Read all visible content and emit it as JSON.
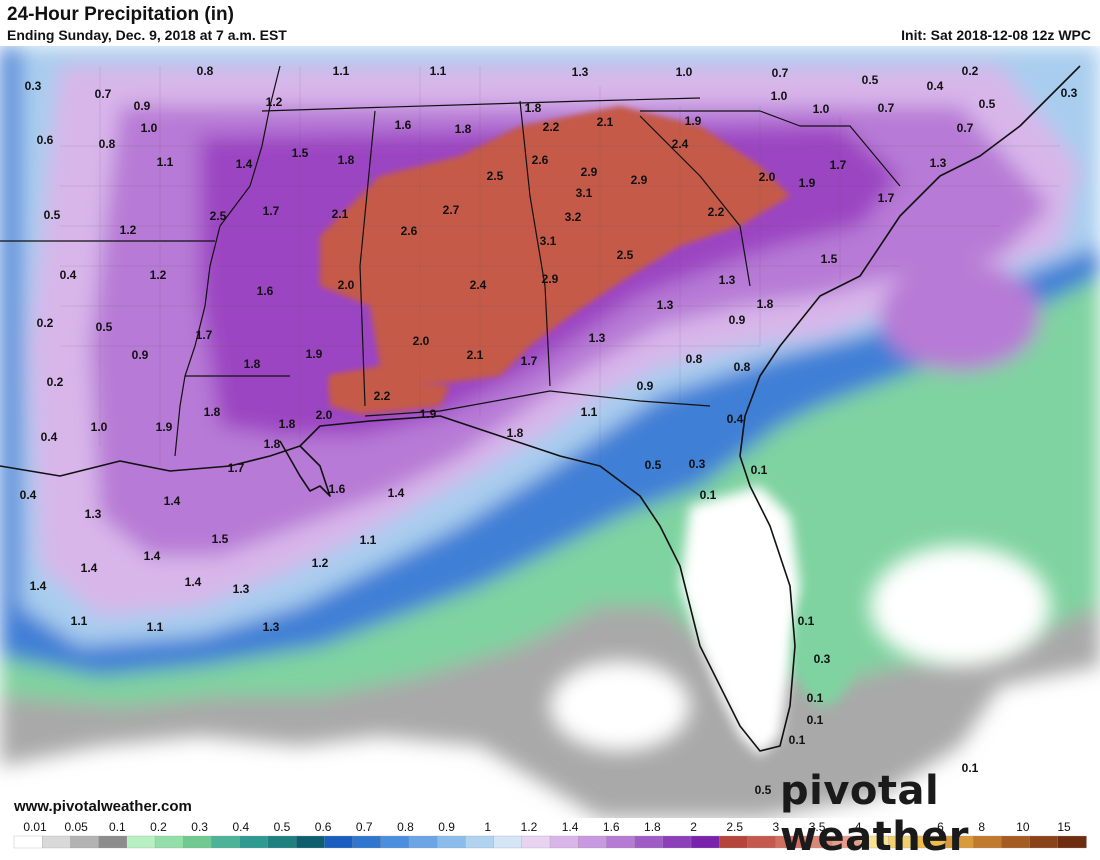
{
  "title": "24-Hour Precipitation (in)",
  "subtitle": "Ending Sunday, Dec. 9, 2018 at 7 a.m. EST",
  "init": "Init: Sat 2018-12-08 12z WPC",
  "website": "www.pivotalweather.com",
  "brand": "pivotal weather",
  "legend": {
    "ticks": [
      "0.01",
      "0.05",
      "0.1",
      "0.2",
      "0.3",
      "0.4",
      "0.5",
      "0.6",
      "0.7",
      "0.8",
      "0.9",
      "1",
      "1.2",
      "1.4",
      "1.6",
      "1.8",
      "2",
      "2.5",
      "3",
      "3.5",
      "4",
      "5",
      "6",
      "8",
      "10",
      "15"
    ],
    "colors": [
      "#ffffff",
      "#d9d9d9",
      "#b3b3b3",
      "#8c8c8c",
      "#b7f0c3",
      "#93dfa9",
      "#6fc990",
      "#4db398",
      "#2e9a90",
      "#1e807f",
      "#0d5e6e",
      "#1a5fbf",
      "#2f76cf",
      "#4b8ede",
      "#6ba5e6",
      "#8cbceb",
      "#b0d3f0",
      "#d4e6f5",
      "#e8d4f0",
      "#d9b6ea",
      "#c898e0",
      "#b57ad3",
      "#a05cc6",
      "#8d3fba",
      "#7a22ac",
      "#b5453a",
      "#c45a4f",
      "#d06f62",
      "#db8676",
      "#e69c89",
      "#f7e393",
      "#f2d06e",
      "#edbc4c",
      "#d99a3c",
      "#c07a2e",
      "#a55c22",
      "#8a4318",
      "#6e2d10"
    ]
  },
  "map": {
    "labels": [
      {
        "t": "0.3"
      },
      {
        "t": "0.7"
      },
      {
        "t": "0.9"
      },
      {
        "t": "1.0"
      },
      {
        "t": "0.6"
      },
      {
        "t": "0.8"
      },
      {
        "t": "1.1"
      },
      {
        "t": "0.8"
      },
      {
        "t": "1.2"
      },
      {
        "t": "1.4"
      },
      {
        "t": "1.1"
      },
      {
        "t": "1.1"
      },
      {
        "t": "1.3"
      },
      {
        "t": "1.0"
      },
      {
        "t": "0.7"
      },
      {
        "t": "1.0"
      },
      {
        "t": "1.0"
      },
      {
        "t": "0.5"
      },
      {
        "t": "0.7"
      },
      {
        "t": "0.4"
      },
      {
        "t": "0.2"
      },
      {
        "t": "0.5"
      },
      {
        "t": "0.3"
      },
      {
        "t": "0.7"
      },
      {
        "t": "1.6"
      },
      {
        "t": "1.8"
      },
      {
        "t": "1.8"
      },
      {
        "t": "2.2"
      },
      {
        "t": "2.1"
      },
      {
        "t": "1.9"
      },
      {
        "t": "1.5"
      },
      {
        "t": "1.8"
      },
      {
        "t": "2.6"
      },
      {
        "t": "2.4"
      },
      {
        "t": "2.9"
      },
      {
        "t": "2.5"
      },
      {
        "t": "3.1"
      },
      {
        "t": "2.9"
      },
      {
        "t": "1.7"
      },
      {
        "t": "2.0"
      },
      {
        "t": "1.9"
      },
      {
        "t": "1.3"
      },
      {
        "t": "1.7"
      },
      {
        "t": "0.5"
      },
      {
        "t": "1.2"
      },
      {
        "t": "2.5"
      },
      {
        "t": "1.7"
      },
      {
        "t": "2.1"
      },
      {
        "t": "2.7"
      },
      {
        "t": "3.2"
      },
      {
        "t": "2.2"
      },
      {
        "t": "2.6"
      },
      {
        "t": "3.1"
      },
      {
        "t": "0.4"
      },
      {
        "t": "1.2"
      },
      {
        "t": "2.5"
      },
      {
        "t": "1.5"
      },
      {
        "t": "1.6"
      },
      {
        "t": "2.0"
      },
      {
        "t": "2.4"
      },
      {
        "t": "2.9"
      },
      {
        "t": "1.3"
      },
      {
        "t": "0.2"
      },
      {
        "t": "0.5"
      },
      {
        "t": "1.3"
      },
      {
        "t": "1.8"
      },
      {
        "t": "1.7"
      },
      {
        "t": "0.9"
      },
      {
        "t": "2.0"
      },
      {
        "t": "1.3"
      },
      {
        "t": "0.9"
      },
      {
        "t": "0.2"
      },
      {
        "t": "1.8"
      },
      {
        "t": "1.9"
      },
      {
        "t": "2.1"
      },
      {
        "t": "1.7"
      },
      {
        "t": "0.8"
      },
      {
        "t": "0.8"
      },
      {
        "t": "0.9"
      },
      {
        "t": "1.8"
      },
      {
        "t": "2.0"
      },
      {
        "t": "2.2"
      },
      {
        "t": "1.9"
      },
      {
        "t": "1.1"
      },
      {
        "t": "0.4"
      },
      {
        "t": "1.0"
      },
      {
        "t": "1.9"
      },
      {
        "t": "1.8"
      },
      {
        "t": "1.8"
      },
      {
        "t": "0.4"
      },
      {
        "t": "1.8"
      },
      {
        "t": "0.5"
      },
      {
        "t": "0.3"
      },
      {
        "t": "0.1"
      },
      {
        "t": "1.7"
      },
      {
        "t": "0.4"
      },
      {
        "t": "1.6"
      },
      {
        "t": "1.4"
      },
      {
        "t": "0.1"
      },
      {
        "t": "1.3"
      },
      {
        "t": "1.4"
      },
      {
        "t": "1.5"
      },
      {
        "t": "1.1"
      },
      {
        "t": "1.4"
      },
      {
        "t": "1.2"
      },
      {
        "t": "1.4"
      },
      {
        "t": "1.4"
      },
      {
        "t": "1.4"
      },
      {
        "t": "1.3"
      },
      {
        "t": "1.1"
      },
      {
        "t": "1.1"
      },
      {
        "t": "1.3"
      },
      {
        "t": "0.1"
      },
      {
        "t": "0.3"
      },
      {
        "t": "0.1"
      },
      {
        "t": "0.1"
      },
      {
        "t": "0.1"
      },
      {
        "t": "0.5"
      },
      {
        "t": "0.1"
      }
    ]
  }
}
